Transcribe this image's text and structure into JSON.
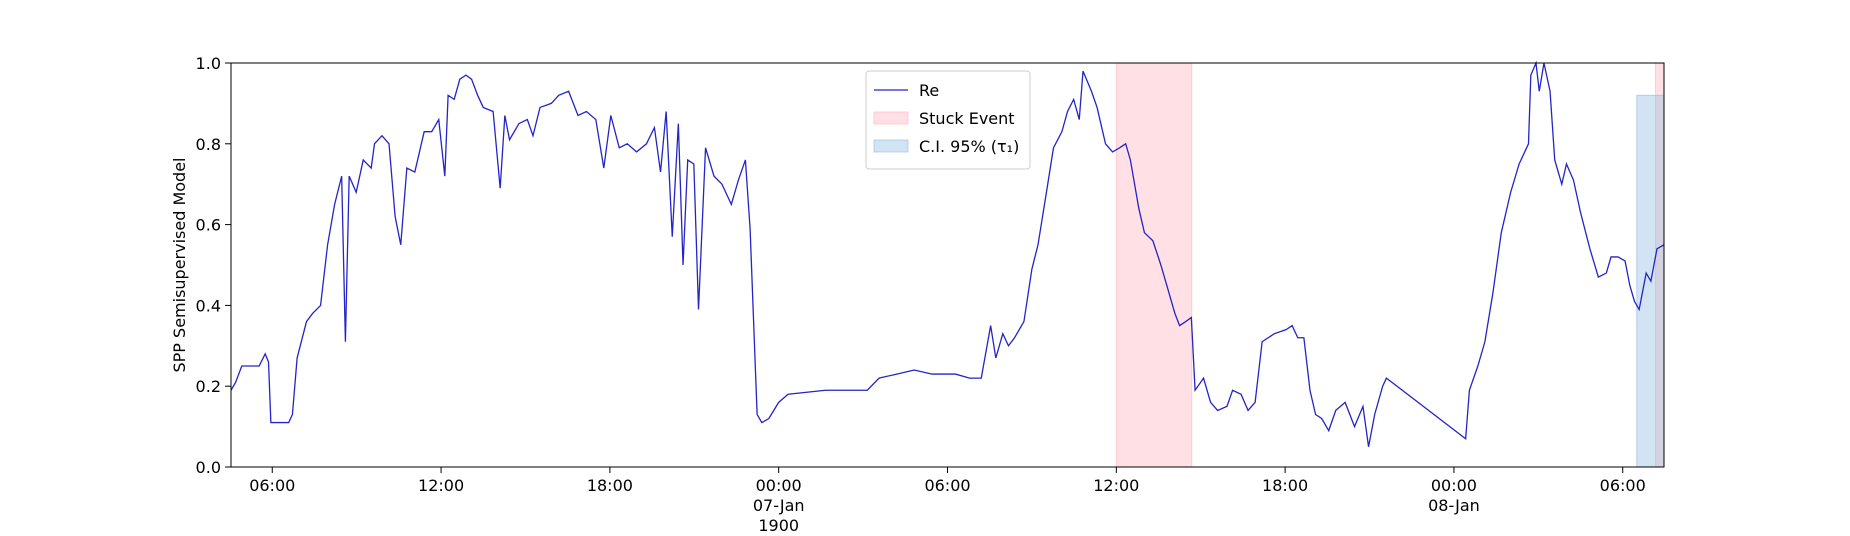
{
  "chart_data": {
    "type": "line",
    "ylabel": "SPP Semisupervised Model",
    "xlim": [
      "1900-01-06T04:32",
      "1900-01-08T07:28"
    ],
    "ylim": [
      0,
      1
    ],
    "yticks": [
      {
        "value": 0,
        "label": "0.0"
      },
      0.2,
      0.4,
      0.6,
      0.8,
      {
        "value": 1,
        "label": "1.0"
      }
    ],
    "xticks": [
      {
        "value": "1900-01-06T06:00",
        "label": "06:00"
      },
      {
        "value": "1900-01-06T12:00",
        "label": "12:00"
      },
      {
        "value": "1900-01-06T18:00",
        "label": "18:00"
      },
      {
        "value": "1900-01-07T00:00",
        "label": "00:00\n07-Jan\n1900"
      },
      {
        "value": "1900-01-07T06:00",
        "label": "06:00"
      },
      {
        "value": "1900-01-07T12:00",
        "label": "12:00"
      },
      {
        "value": "1900-01-07T18:00",
        "label": "18:00"
      },
      {
        "value": "1900-01-08T00:00",
        "label": "00:00\n08-Jan"
      },
      {
        "value": "1900-01-08T06:00",
        "label": "06:00"
      }
    ],
    "legend": "upper center",
    "spans": [
      {
        "name": "Stuck Event",
        "color": "#ffb3bd",
        "ranges": [
          [
            "1900-01-07T12:00",
            "1900-01-07T14:41"
          ],
          [
            "1900-01-08T07:10",
            "1900-01-08T07:28"
          ]
        ]
      },
      {
        "name": "C.I. 95% (τ₁)",
        "color": "#8fbbe0",
        "ranges": [
          [
            "1900-01-08T06:30",
            "1900-01-08T07:28"
          ]
        ],
        "ymax": 0.92
      }
    ],
    "x": [
      "1900-01-06T04:32",
      "1900-01-06T04:42",
      "1900-01-06T04:55",
      "1900-01-06T05:32",
      "1900-01-06T05:45",
      "1900-01-06T05:52",
      "1900-01-06T05:57",
      "1900-01-06T06:35",
      "1900-01-06T06:43",
      "1900-01-06T06:53",
      "1900-01-06T07:13",
      "1900-01-06T07:26",
      "1900-01-06T07:43",
      "1900-01-06T07:58",
      "1900-01-06T08:13",
      "1900-01-06T08:28",
      "1900-01-06T08:36",
      "1900-01-06T08:44",
      "1900-01-06T08:59",
      "1900-01-06T09:14",
      "1900-01-06T09:31",
      "1900-01-06T09:38",
      "1900-01-06T09:54",
      "1900-01-06T10:09",
      "1900-01-06T10:22",
      "1900-01-06T10:34",
      "1900-01-06T10:47",
      "1900-01-06T11:04",
      "1900-01-06T11:24",
      "1900-01-06T11:40",
      "1900-01-06T11:55",
      "1900-01-06T12:08",
      "1900-01-06T12:15",
      "1900-01-06T12:28",
      "1900-01-06T12:40",
      "1900-01-06T12:53",
      "1900-01-06T13:05",
      "1900-01-06T13:18",
      "1900-01-06T13:30",
      "1900-01-06T13:51",
      "1900-01-06T14:06",
      "1900-01-06T14:16",
      "1900-01-06T14:26",
      "1900-01-06T14:46",
      "1900-01-06T15:04",
      "1900-01-06T15:16",
      "1900-01-06T15:31",
      "1900-01-06T15:55",
      "1900-01-06T16:11",
      "1900-01-06T16:32",
      "1900-01-06T16:52",
      "1900-01-06T17:10",
      "1900-01-06T17:30",
      "1900-01-06T17:47",
      "1900-01-06T18:02",
      "1900-01-06T18:20",
      "1900-01-06T18:37",
      "1900-01-06T18:57",
      "1900-01-06T19:18",
      "1900-01-06T19:35",
      "1900-01-06T19:48",
      "1900-01-06T20:00",
      "1900-01-06T20:13",
      "1900-01-06T20:26",
      "1900-01-06T20:36",
      "1900-01-06T20:46",
      "1900-01-06T20:59",
      "1900-01-06T21:09",
      "1900-01-06T21:24",
      "1900-01-06T21:42",
      "1900-01-06T21:59",
      "1900-01-06T22:19",
      "1900-01-06T22:34",
      "1900-01-06T22:49",
      "1900-01-06T22:59",
      "1900-01-06T23:14",
      "1900-01-06T23:24",
      "1900-01-06T23:39",
      "1900-01-07T00:00",
      "1900-01-07T00:20",
      "1900-01-07T01:40",
      "1900-01-07T02:06",
      "1900-01-07T03:09",
      "1900-01-07T03:34",
      "1900-01-07T04:12",
      "1900-01-07T04:49",
      "1900-01-07T05:27",
      "1900-01-07T05:52",
      "1900-01-07T06:17",
      "1900-01-07T06:47",
      "1900-01-07T07:12",
      "1900-01-07T07:32",
      "1900-01-07T07:43",
      "1900-01-07T07:58",
      "1900-01-07T08:10",
      "1900-01-07T08:23",
      "1900-01-07T08:43",
      "1900-01-07T09:00",
      "1900-01-07T09:13",
      "1900-01-07T09:31",
      "1900-01-07T09:46",
      "1900-01-07T10:04",
      "1900-01-07T10:16",
      "1900-01-07T10:29",
      "1900-01-07T10:41",
      "1900-01-07T10:49",
      "1900-01-07T11:07",
      "1900-01-07T11:19",
      "1900-01-07T11:37",
      "1900-01-07T11:52",
      "1900-01-07T12:07",
      "1900-01-07T12:20",
      "1900-01-07T12:30",
      "1900-01-07T12:48",
      "1900-01-07T13:00",
      "1900-01-07T13:18",
      "1900-01-07T13:35",
      "1900-01-07T13:50",
      "1900-01-07T14:05",
      "1900-01-07T14:15",
      "1900-01-07T14:28",
      "1900-01-07T14:40",
      "1900-01-07T14:48",
      "1900-01-07T15:06",
      "1900-01-07T15:21",
      "1900-01-07T15:36",
      "1900-01-07T15:56",
      "1900-01-07T16:08",
      "1900-01-07T16:26",
      "1900-01-07T16:41",
      "1900-01-07T16:56",
      "1900-01-07T17:11",
      "1900-01-07T17:37",
      "1900-01-07T18:02",
      "1900-01-07T18:15",
      "1900-01-07T18:27",
      "1900-01-07T18:40",
      "1900-01-07T18:53",
      "1900-01-07T19:05",
      "1900-01-07T19:18",
      "1900-01-07T19:33",
      "1900-01-07T19:48",
      "1900-01-07T20:08",
      "1900-01-07T20:28",
      "1900-01-07T20:46",
      "1900-01-07T20:58",
      "1900-01-07T21:11",
      "1900-01-07T21:28",
      "1900-01-07T21:36",
      "1900-01-08T00:25",
      "1900-01-08T00:33",
      "1900-01-08T00:51",
      "1900-01-08T01:06",
      "1900-01-08T01:23",
      "1900-01-08T01:41",
      "1900-01-08T02:01",
      "1900-01-08T02:19",
      "1900-01-08T02:39",
      "1900-01-08T02:44",
      "1900-01-08T02:55",
      "1900-01-08T03:02",
      "1900-01-08T03:12",
      "1900-01-08T03:25",
      "1900-01-08T03:35",
      "1900-01-08T03:50",
      "1900-01-08T04:00",
      "1900-01-08T04:15",
      "1900-01-08T04:30",
      "1900-01-08T04:50",
      "1900-01-08T05:08",
      "1900-01-08T05:25",
      "1900-01-08T05:35",
      "1900-01-08T05:50",
      "1900-01-08T06:05",
      "1900-01-08T06:15",
      "1900-01-08T06:25",
      "1900-01-08T06:35",
      "1900-01-08T06:50",
      "1900-01-08T07:00",
      "1900-01-08T07:13",
      "1900-01-08T07:28"
    ],
    "series": [
      {
        "name": "Re",
        "color": "#2424c8",
        "values": [
          0.19,
          0.21,
          0.25,
          0.25,
          0.28,
          0.26,
          0.11,
          0.11,
          0.13,
          0.27,
          0.36,
          0.38,
          0.4,
          0.55,
          0.65,
          0.72,
          0.31,
          0.72,
          0.68,
          0.76,
          0.74,
          0.8,
          0.82,
          0.8,
          0.62,
          0.55,
          0.74,
          0.73,
          0.83,
          0.83,
          0.86,
          0.72,
          0.92,
          0.91,
          0.96,
          0.97,
          0.96,
          0.92,
          0.89,
          0.88,
          0.69,
          0.87,
          0.81,
          0.85,
          0.86,
          0.82,
          0.89,
          0.9,
          0.92,
          0.93,
          0.87,
          0.88,
          0.86,
          0.74,
          0.87,
          0.79,
          0.8,
          0.78,
          0.8,
          0.84,
          0.73,
          0.88,
          0.57,
          0.85,
          0.5,
          0.76,
          0.75,
          0.39,
          0.79,
          0.72,
          0.7,
          0.65,
          0.71,
          0.76,
          0.59,
          0.13,
          0.11,
          0.12,
          0.16,
          0.18,
          0.19,
          0.19,
          0.19,
          0.22,
          0.23,
          0.24,
          0.23,
          0.23,
          0.23,
          0.22,
          0.22,
          0.35,
          0.27,
          0.33,
          0.3,
          0.32,
          0.36,
          0.49,
          0.55,
          0.68,
          0.79,
          0.83,
          0.88,
          0.91,
          0.86,
          0.98,
          0.93,
          0.89,
          0.8,
          0.78,
          0.79,
          0.8,
          0.76,
          0.64,
          0.58,
          0.56,
          0.5,
          0.44,
          0.38,
          0.35,
          0.36,
          0.37,
          0.19,
          0.22,
          0.16,
          0.14,
          0.15,
          0.19,
          0.18,
          0.14,
          0.16,
          0.31,
          0.33,
          0.34,
          0.35,
          0.32,
          0.32,
          0.19,
          0.13,
          0.12,
          0.09,
          0.14,
          0.16,
          0.1,
          0.15,
          0.05,
          0.13,
          0.2,
          0.22,
          0.07,
          0.19,
          0.25,
          0.31,
          0.43,
          0.58,
          0.68,
          0.75,
          0.8,
          0.97,
          1.0,
          0.93,
          1.0,
          0.93,
          0.76,
          0.7,
          0.75,
          0.71,
          0.63,
          0.54,
          0.47,
          0.48,
          0.52,
          0.52,
          0.51,
          0.45,
          0.41,
          0.39,
          0.48,
          0.46,
          0.54,
          0.55
        ]
      }
    ]
  }
}
